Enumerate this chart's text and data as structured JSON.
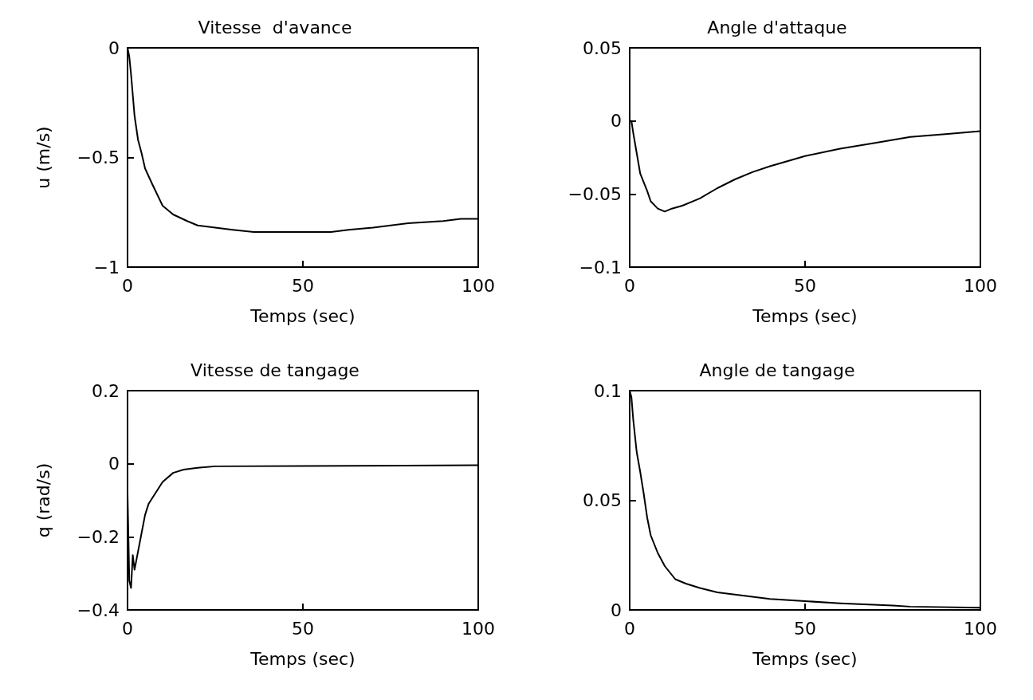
{
  "chart_data": [
    {
      "type": "line",
      "title": "Vitesse  d'avance",
      "xlabel": "Temps (sec)",
      "ylabel": "u (m/s)",
      "xlim": [
        0,
        100
      ],
      "xticks": [
        0,
        50,
        100
      ],
      "ylim": [
        -1,
        0
      ],
      "yticks": [
        -1,
        -0.5,
        0
      ],
      "grid": false,
      "marker": "none",
      "line_style": "solid",
      "x": [
        0,
        0.5,
        1,
        2,
        3,
        4,
        5,
        7,
        10,
        13,
        17,
        20,
        25,
        30,
        36,
        45,
        58,
        63,
        70,
        80,
        90,
        95,
        100
      ],
      "series": [
        {
          "color": "#000000",
          "values": [
            0,
            -0.04,
            -0.12,
            -0.31,
            -0.42,
            -0.48,
            -0.55,
            -0.62,
            -0.72,
            -0.76,
            -0.79,
            -0.81,
            -0.82,
            -0.83,
            -0.84,
            -0.84,
            -0.84,
            -0.83,
            -0.82,
            -0.8,
            -0.79,
            -0.78,
            -0.78
          ]
        }
      ]
    },
    {
      "type": "line",
      "title": "Angle d'attaque",
      "xlabel": "Temps (sec)",
      "xlim": [
        0,
        100
      ],
      "xticks": [
        0,
        50,
        100
      ],
      "ylim": [
        -0.1,
        0.05
      ],
      "yticks": [
        -0.1,
        -0.05,
        0,
        0.05
      ],
      "grid": false,
      "marker": "none",
      "line_style": "solid",
      "x": [
        0,
        0.5,
        1,
        2,
        3,
        5,
        6,
        8,
        10,
        12,
        15,
        20,
        25,
        30,
        35,
        40,
        50,
        60,
        70,
        80,
        90,
        100
      ],
      "series": [
        {
          "color": "#000000",
          "values": [
            0,
            0,
            -0.008,
            -0.022,
            -0.036,
            -0.048,
            -0.055,
            -0.06,
            -0.062,
            -0.06,
            -0.058,
            -0.053,
            -0.046,
            -0.04,
            -0.035,
            -0.031,
            -0.024,
            -0.019,
            -0.015,
            -0.011,
            -0.009,
            -0.007
          ]
        }
      ]
    },
    {
      "type": "line",
      "title": "Vitesse de tangage",
      "xlabel": "Temps (sec)",
      "ylabel": "q (rad/s)",
      "xlim": [
        0,
        100
      ],
      "xticks": [
        0,
        50,
        100
      ],
      "ylim": [
        -0.4,
        0.2
      ],
      "yticks": [
        -0.4,
        -0.2,
        0,
        0.2
      ],
      "grid": false,
      "marker": "none",
      "line_style": "solid",
      "x": [
        0,
        0.5,
        1,
        1.5,
        2,
        3,
        4,
        5,
        6,
        8,
        10,
        13,
        16,
        20,
        25,
        50,
        100
      ],
      "series": [
        {
          "color": "#000000",
          "values": [
            -0.08,
            -0.32,
            -0.34,
            -0.25,
            -0.29,
            -0.24,
            -0.19,
            -0.14,
            -0.11,
            -0.08,
            -0.05,
            -0.025,
            -0.016,
            -0.011,
            -0.007,
            -0.006,
            -0.004
          ]
        }
      ]
    },
    {
      "type": "line",
      "title": "Angle de tangage",
      "xlabel": "Temps (sec)",
      "xlim": [
        0,
        100
      ],
      "xticks": [
        0,
        50,
        100
      ],
      "ylim": [
        0,
        0.1
      ],
      "yticks": [
        0,
        0.05,
        0.1
      ],
      "grid": false,
      "marker": "none",
      "line_style": "solid",
      "x": [
        0,
        0.5,
        1,
        2,
        3,
        4,
        5,
        6,
        8,
        10,
        13,
        16,
        20,
        25,
        30,
        40,
        50,
        60,
        75,
        80,
        100
      ],
      "series": [
        {
          "color": "#000000",
          "values": [
            0.1,
            0.097,
            0.087,
            0.072,
            0.063,
            0.053,
            0.042,
            0.034,
            0.026,
            0.02,
            0.014,
            0.012,
            0.01,
            0.008,
            0.007,
            0.005,
            0.004,
            0.003,
            0.002,
            0.0015,
            0.001
          ]
        }
      ]
    }
  ]
}
